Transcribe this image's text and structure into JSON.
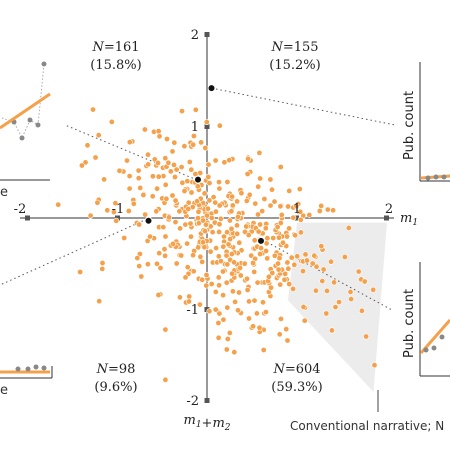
{
  "chart_data": {
    "type": "scatter",
    "xlabel": "m1",
    "ylabel": "m1+m2",
    "xlim": [
      -2,
      2
    ],
    "ylim": [
      -2,
      2
    ],
    "x_ticks": [
      "-2",
      "-1",
      "1",
      "2"
    ],
    "y_ticks": [
      "2",
      "1",
      "-1",
      "-2"
    ],
    "quadrants": [
      {
        "position": "top-left",
        "n_text": "N=161",
        "pct_text": "(15.8%)"
      },
      {
        "position": "top-right",
        "n_text": "N=155",
        "pct_text": "(15.2%)"
      },
      {
        "position": "bottom-left",
        "n_text": "N=98",
        "pct_text": "(9.6%)"
      },
      {
        "position": "bottom-right",
        "n_text": "N=604",
        "pct_text": "(59.3%)"
      }
    ],
    "highlighted_points": [
      {
        "x": 0.05,
        "y": 1.42
      },
      {
        "x": -0.1,
        "y": 0.42
      },
      {
        "x": -0.65,
        "y": -0.03
      },
      {
        "x": 0.6,
        "y": -0.25
      }
    ],
    "shaded_region": {
      "label": "Conventional narrative; N",
      "polygon": [
        [
          1.0,
          -0.05
        ],
        [
          2.0,
          -0.05
        ],
        [
          1.85,
          -1.9
        ],
        [
          0.9,
          -0.9
        ]
      ]
    },
    "insets": [
      {
        "label": "Pub. count"
      },
      {
        "label": "Pub. count"
      }
    ],
    "cut_labels": [
      "e",
      "e"
    ],
    "colors": {
      "points": "#f5a04a",
      "highlight": "#111111",
      "region": "#ececec"
    }
  }
}
